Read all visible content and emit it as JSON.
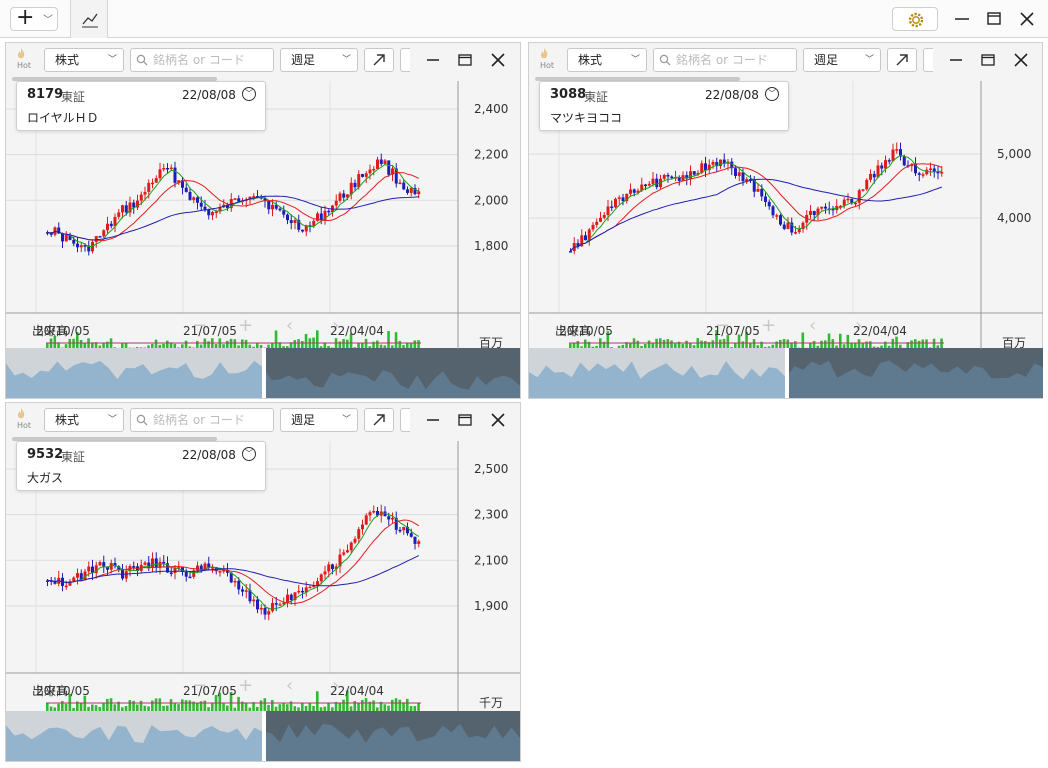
{
  "toolbar": {
    "add_icon": "plus-icon",
    "chart_icon": "trend-line-icon",
    "settings_icon": "gear-icon"
  },
  "panels": [
    {
      "hot_label": "Hot",
      "market_select": "株式",
      "search_placeholder": "銘柄名 or コード",
      "period_select": "週足",
      "code": "8179",
      "exchange": "東証",
      "date": "22/08/08",
      "name": "ロイヤルＨＤ",
      "volume_label": "出来高",
      "volume_unit": "百万",
      "x_ticks": [
        "20/10/05",
        "21/07/05",
        "22/04/04"
      ],
      "y_ticks": [
        "2,400",
        "2,200",
        "2,000",
        "1,800"
      ]
    },
    {
      "hot_label": "Hot",
      "market_select": "株式",
      "search_placeholder": "銘柄名 or コード",
      "period_select": "週足",
      "code": "3088",
      "exchange": "東証",
      "date": "22/08/08",
      "name": "マツキヨココ",
      "volume_label": "出来高",
      "volume_unit": "百万",
      "x_ticks": [
        "20/10/05",
        "21/07/05",
        "22/04/04"
      ],
      "y_ticks": [
        "5,000",
        "4,000"
      ]
    },
    {
      "hot_label": "Hot",
      "market_select": "株式",
      "search_placeholder": "銘柄名 or コード",
      "period_select": "週足",
      "code": "9532",
      "exchange": "東証",
      "date": "22/08/08",
      "name": "大ガス",
      "volume_label": "出来高",
      "volume_unit": "千万",
      "x_ticks": [
        "20/10/05",
        "21/07/05",
        "22/04/04"
      ],
      "y_ticks": [
        "2,500",
        "2,300",
        "2,100",
        "1,900"
      ]
    }
  ],
  "colors": {
    "up_candle": "#e01b1b",
    "down_candle": "#1d1db8",
    "ma_short": "#1aa01a",
    "ma_mid": "#e02020",
    "ma_long": "#2020b0",
    "volume_bar": "#33b833",
    "overview_fill": "#8aaecb",
    "overview_dark": "#3f5566"
  }
}
